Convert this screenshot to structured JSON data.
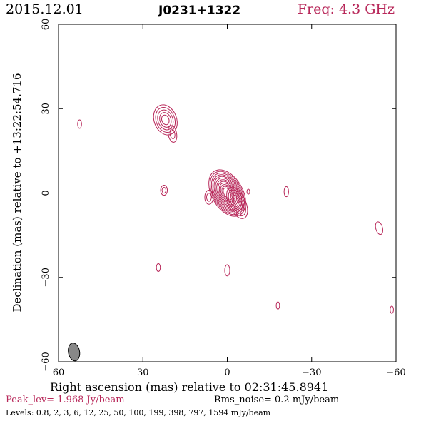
{
  "header": {
    "date": "2015.12.01",
    "source": "J0231+1322",
    "freq": "Freq: 4.3 GHz"
  },
  "footer": {
    "peak": "Peak_lev=  1.968 Jy/beam",
    "rms": "Rms_noise=  0.2 mJy/beam",
    "levels": "Levels: 0.8,   2,   3,   6,  12,  25,  50, 100, 199, 398, 797, 1594 mJy/beam"
  },
  "colors": {
    "contour": "#b8285a",
    "beam_fill": "#888888",
    "frame": "#000000"
  },
  "chart_data": {
    "type": "contour",
    "xlabel": "Right ascension (mas) relative to 02:31:45.8941",
    "ylabel": "Declination (mas) relative to +13:22:54.716",
    "xlim": [
      60,
      -60
    ],
    "ylim": [
      -60,
      60
    ],
    "x_ticks": [
      60,
      30,
      0,
      -30,
      -60
    ],
    "y_ticks": [
      -60,
      -30,
      0,
      30,
      60
    ],
    "x_tick_labels": [
      "60",
      "30",
      "0",
      "−30",
      "−60"
    ],
    "y_tick_labels": [
      "−60",
      "−30",
      "0",
      "30",
      "60"
    ],
    "peak_jy_per_beam": 1.968,
    "rms_mjy_per_beam": 0.2,
    "levels_mjy_per_beam": [
      0.8,
      2,
      3,
      6,
      12,
      25,
      50,
      100,
      199,
      398,
      797,
      1594
    ],
    "beam": {
      "x": 54.5,
      "y": -56.5,
      "major_mas": 3.2,
      "minor_mas": 2.0,
      "pa_deg": -10
    },
    "components": [
      {
        "name": "core",
        "x": 0,
        "y": 0,
        "rings": 12,
        "rx": 5.5,
        "ry": 9.0,
        "angle": -30
      },
      {
        "name": "core-tail",
        "x": -3.5,
        "y": -3.5,
        "rings": 5,
        "rx": 3.0,
        "ry": 6.0,
        "angle": -25
      },
      {
        "name": "core-west-knot",
        "x": 6.5,
        "y": -1.5,
        "rings": 2,
        "rx": 1.5,
        "ry": 2.5,
        "angle": 0
      },
      {
        "name": "jet-north",
        "x": 22,
        "y": 26,
        "rings": 5,
        "rx": 4.0,
        "ry": 5.5,
        "angle": -20
      },
      {
        "name": "jet-north-tail",
        "x": 19.5,
        "y": 21,
        "rings": 2,
        "rx": 1.5,
        "ry": 3.0,
        "angle": -10
      },
      {
        "name": "jet-blob",
        "x": 22.5,
        "y": 1,
        "rings": 2,
        "rx": 1.2,
        "ry": 1.8,
        "angle": 0
      },
      {
        "name": "spot-a",
        "x": 52.5,
        "y": 24.5,
        "rings": 1,
        "rx": 0.7,
        "ry": 1.5,
        "angle": 0
      },
      {
        "name": "spot-b",
        "x": -21,
        "y": 0.5,
        "rings": 1,
        "rx": 0.8,
        "ry": 1.8,
        "angle": 0
      },
      {
        "name": "spot-c",
        "x": -54,
        "y": -12.5,
        "rings": 1,
        "rx": 1.2,
        "ry": 2.3,
        "angle": -15
      },
      {
        "name": "spot-d",
        "x": 24.5,
        "y": -26.5,
        "rings": 1,
        "rx": 0.7,
        "ry": 1.4,
        "angle": 0
      },
      {
        "name": "spot-e",
        "x": 0,
        "y": -27.5,
        "rings": 1,
        "rx": 0.9,
        "ry": 2.0,
        "angle": 0
      },
      {
        "name": "spot-f",
        "x": -18,
        "y": -40,
        "rings": 1,
        "rx": 0.6,
        "ry": 1.3,
        "angle": 0
      },
      {
        "name": "spot-g",
        "x": -58.5,
        "y": -41.5,
        "rings": 1,
        "rx": 0.6,
        "ry": 1.3,
        "angle": 0
      },
      {
        "name": "spot-h",
        "x": -7.5,
        "y": 0.5,
        "rings": 1,
        "rx": 0.5,
        "ry": 0.9,
        "angle": 0
      }
    ]
  }
}
